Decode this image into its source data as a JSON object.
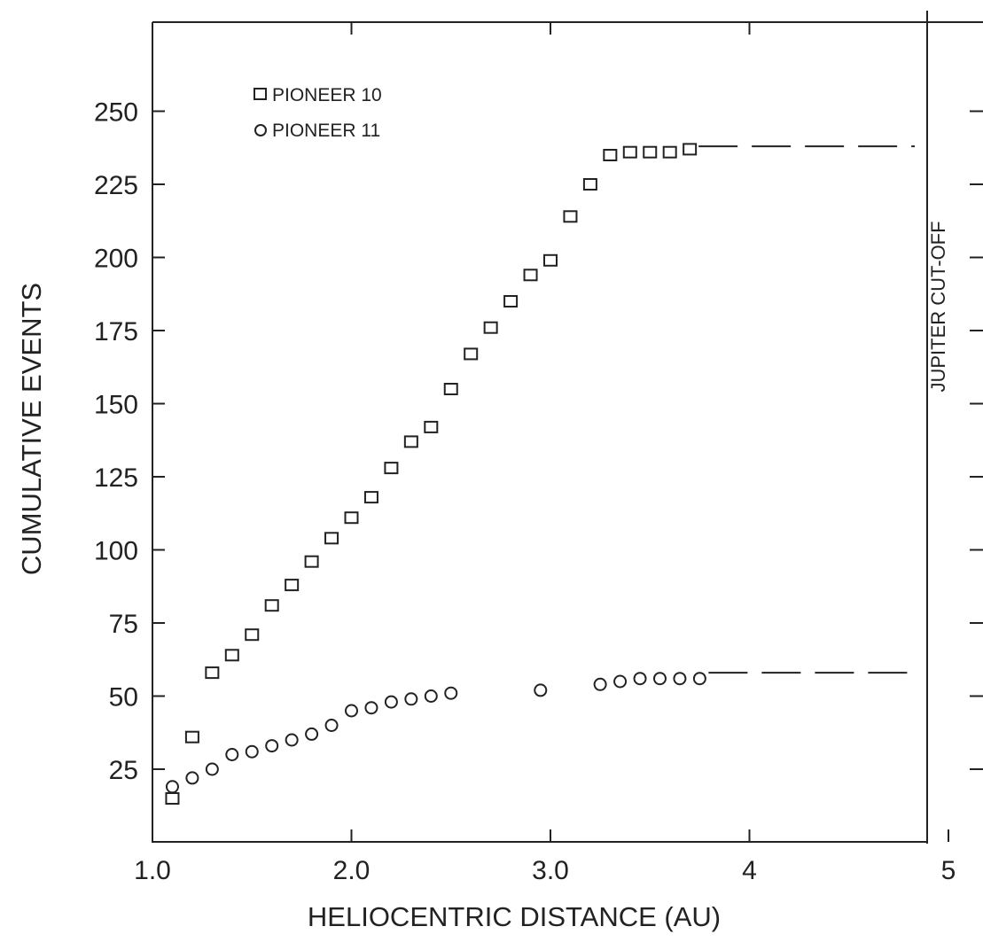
{
  "chart_data": {
    "type": "scatter",
    "xlabel": "HELIOCENTRIC DISTANCE (AU)",
    "ylabel": "CUMULATIVE EVENTS",
    "xlim": [
      1.0,
      5.3
    ],
    "ylim": [
      0,
      275
    ],
    "x_ticks": [
      1.0,
      2.0,
      3.0,
      4,
      5
    ],
    "x_tick_labels": [
      "1.0",
      "2.0",
      "3.0",
      "4",
      "5"
    ],
    "y_ticks": [
      25,
      50,
      75,
      100,
      125,
      150,
      175,
      200,
      225,
      250
    ],
    "y_tick_labels": [
      "25",
      "50",
      "75",
      "100",
      "125",
      "150",
      "175",
      "200",
      "225",
      "250"
    ],
    "grid": false,
    "legend_position": "top-left",
    "annotation": {
      "text": "JUPITER CUT-OFF",
      "x": 5.0
    },
    "series": [
      {
        "name": "PIONEER 10",
        "marker": "square",
        "points": [
          [
            1.1,
            15
          ],
          [
            1.2,
            36
          ],
          [
            1.3,
            58
          ],
          [
            1.4,
            64
          ],
          [
            1.5,
            71
          ],
          [
            1.6,
            81
          ],
          [
            1.7,
            88
          ],
          [
            1.8,
            96
          ],
          [
            1.9,
            104
          ],
          [
            2.0,
            111
          ],
          [
            2.1,
            118
          ],
          [
            2.2,
            128
          ],
          [
            2.3,
            137
          ],
          [
            2.4,
            142
          ],
          [
            2.5,
            155
          ],
          [
            2.6,
            167
          ],
          [
            2.7,
            176
          ],
          [
            2.8,
            185
          ],
          [
            2.9,
            194
          ],
          [
            3.0,
            199
          ],
          [
            3.1,
            214
          ],
          [
            3.2,
            225
          ],
          [
            3.3,
            235
          ],
          [
            3.4,
            236
          ],
          [
            3.5,
            236
          ],
          [
            3.6,
            236
          ],
          [
            3.7,
            237
          ]
        ],
        "extrapolation": {
          "from_x": 3.7,
          "to_x": 5.0,
          "y": 238
        }
      },
      {
        "name": "PIONEER 11",
        "marker": "circle",
        "points": [
          [
            1.1,
            19
          ],
          [
            1.2,
            22
          ],
          [
            1.3,
            25
          ],
          [
            1.4,
            30
          ],
          [
            1.5,
            31
          ],
          [
            1.6,
            33
          ],
          [
            1.7,
            35
          ],
          [
            1.8,
            37
          ],
          [
            1.9,
            40
          ],
          [
            2.0,
            45
          ],
          [
            2.1,
            46
          ],
          [
            2.2,
            48
          ],
          [
            2.3,
            49
          ],
          [
            2.4,
            50
          ],
          [
            2.5,
            51
          ],
          [
            2.95,
            52
          ],
          [
            3.25,
            54
          ],
          [
            3.35,
            55
          ],
          [
            3.45,
            56
          ],
          [
            3.55,
            56
          ],
          [
            3.65,
            56
          ],
          [
            3.75,
            56
          ]
        ],
        "extrapolation": {
          "from_x": 3.75,
          "to_x": 5.0,
          "y": 58
        }
      }
    ]
  }
}
